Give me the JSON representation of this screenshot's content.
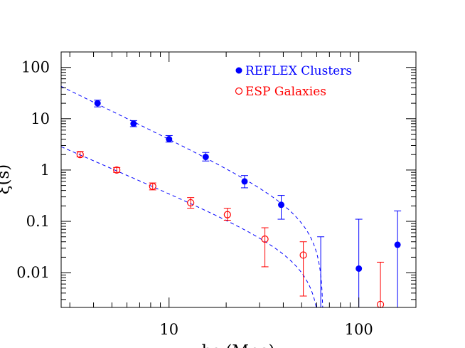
{
  "chart_data": {
    "type": "scatter",
    "title": "",
    "xlabel": "hs (Mpc)",
    "ylabel": "ξ(s)",
    "xscale": "log",
    "yscale": "log",
    "xlim": [
      2.7,
      200
    ],
    "ylim": [
      0.0021,
      200
    ],
    "grid": false,
    "legend_position": "top-right",
    "x_tick_labels": [
      "10",
      "100"
    ],
    "y_tick_labels": [
      "100",
      "10",
      "1",
      "0.1",
      "0.01"
    ],
    "series": [
      {
        "name": "REFLEX Clusters",
        "marker": "filled-circle",
        "color": "#0000ff",
        "points": [
          {
            "x": 4.2,
            "y": 20,
            "lo": 17,
            "hi": 23
          },
          {
            "x": 6.5,
            "y": 8,
            "lo": 7,
            "hi": 9.2
          },
          {
            "x": 10.0,
            "y": 4.0,
            "lo": 3.5,
            "hi": 4.7
          },
          {
            "x": 15.6,
            "y": 1.8,
            "lo": 1.5,
            "hi": 2.2
          },
          {
            "x": 25,
            "y": 0.6,
            "lo": 0.45,
            "hi": 0.78
          },
          {
            "x": 39,
            "y": 0.21,
            "lo": 0.11,
            "hi": 0.32
          },
          {
            "x": 100,
            "y": 0.012,
            "lo": 0.0021,
            "hi": 0.11
          },
          {
            "x": 160,
            "y": 0.035,
            "lo": 0.0021,
            "hi": 0.16
          }
        ]
      },
      {
        "name": "ESP Galaxies",
        "marker": "open-circle",
        "color": "#ff0000",
        "points": [
          {
            "x": 3.4,
            "y": 2.0,
            "lo": 1.8,
            "hi": 2.3
          },
          {
            "x": 5.3,
            "y": 1.0,
            "lo": 0.9,
            "hi": 1.12
          },
          {
            "x": 8.2,
            "y": 0.48,
            "lo": 0.41,
            "hi": 0.56
          },
          {
            "x": 13.0,
            "y": 0.23,
            "lo": 0.18,
            "hi": 0.29
          },
          {
            "x": 20.3,
            "y": 0.135,
            "lo": 0.105,
            "hi": 0.18
          },
          {
            "x": 32,
            "y": 0.045,
            "lo": 0.013,
            "hi": 0.075
          },
          {
            "x": 51,
            "y": 0.022,
            "lo": 0.0035,
            "hi": 0.04
          },
          {
            "x": 130,
            "y": 0.0024,
            "lo": 0.0021,
            "hi": 0.016
          }
        ]
      }
    ],
    "extra_errorbars": [
      {
        "x": 63,
        "color": "#0000ff",
        "lo": 0.0021,
        "hi": 0.05
      }
    ],
    "fit_lines": [
      {
        "color": "#0000ff",
        "style": "dashed",
        "amplitude": 18.5,
        "s0": 4.3,
        "exponent": 1.8,
        "cutoff": 65
      },
      {
        "color": "#0000ff",
        "style": "dashed",
        "amplitude": 1.8,
        "s0": 3.6,
        "exponent": 1.6,
        "cutoff": 63
      }
    ]
  }
}
